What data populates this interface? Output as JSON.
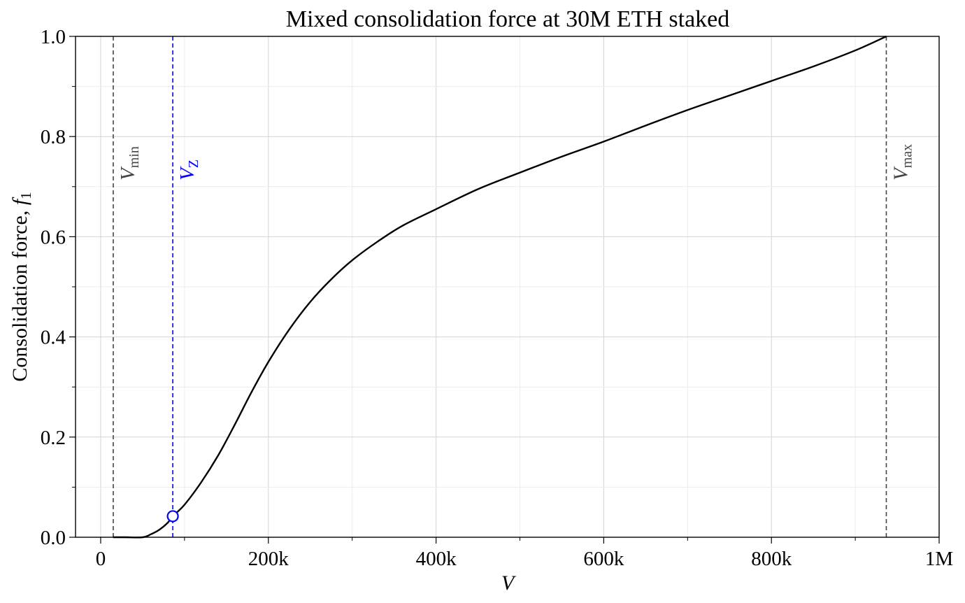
{
  "chart_data": {
    "type": "line",
    "title": "Mixed consolidation force at 30M ETH staked",
    "xlabel": "V",
    "ylabel": "Consolidation force, ",
    "ylabel_symbol": "f",
    "ylabel_subscript": "1",
    "xlim": [
      -30000,
      1000000
    ],
    "ylim": [
      0,
      1.0
    ],
    "grid": true,
    "x_ticks": [
      {
        "value": 0,
        "label": "0"
      },
      {
        "value": 200000,
        "label": "200k"
      },
      {
        "value": 400000,
        "label": "400k"
      },
      {
        "value": 600000,
        "label": "600k"
      },
      {
        "value": 800000,
        "label": "800k"
      },
      {
        "value": 1000000,
        "label": "1M"
      }
    ],
    "x_minor_ticks": [
      100000,
      300000,
      500000,
      700000,
      900000
    ],
    "y_ticks": [
      {
        "value": 0.0,
        "label": "0.0"
      },
      {
        "value": 0.2,
        "label": "0.2"
      },
      {
        "value": 0.4,
        "label": "0.4"
      },
      {
        "value": 0.6,
        "label": "0.6"
      },
      {
        "value": 0.8,
        "label": "0.8"
      },
      {
        "value": 1.0,
        "label": "1.0"
      }
    ],
    "y_minor_ticks": [
      0.1,
      0.3,
      0.5,
      0.7,
      0.9
    ],
    "series": [
      {
        "color": "#000000",
        "points": [
          [
            15000,
            0.0
          ],
          [
            30000,
            0.0
          ],
          [
            50000,
            0.0
          ],
          [
            60000,
            0.006
          ],
          [
            70000,
            0.015
          ],
          [
            80000,
            0.029
          ],
          [
            86000,
            0.042
          ],
          [
            100000,
            0.065
          ],
          [
            120000,
            0.11
          ],
          [
            140000,
            0.163
          ],
          [
            160000,
            0.225
          ],
          [
            180000,
            0.29
          ],
          [
            200000,
            0.35
          ],
          [
            225000,
            0.415
          ],
          [
            250000,
            0.47
          ],
          [
            275000,
            0.515
          ],
          [
            300000,
            0.553
          ],
          [
            330000,
            0.59
          ],
          [
            360000,
            0.622
          ],
          [
            400000,
            0.655
          ],
          [
            450000,
            0.695
          ],
          [
            500000,
            0.728
          ],
          [
            550000,
            0.76
          ],
          [
            600000,
            0.79
          ],
          [
            650000,
            0.822
          ],
          [
            700000,
            0.853
          ],
          [
            750000,
            0.882
          ],
          [
            800000,
            0.911
          ],
          [
            850000,
            0.94
          ],
          [
            900000,
            0.972
          ],
          [
            937000,
            1.0
          ]
        ]
      }
    ],
    "vlines": [
      {
        "x": 15000,
        "color": "#444444",
        "label": "V",
        "sub": "min"
      },
      {
        "x": 86000,
        "color": "#0000ff",
        "label": "V",
        "sub": "Z"
      },
      {
        "x": 937000,
        "color": "#444444",
        "label": "V",
        "sub": "max"
      }
    ],
    "marker": {
      "x": 86000,
      "y": 0.042,
      "edge_color": "#0000ff",
      "fill_color": "#ffffff"
    }
  }
}
